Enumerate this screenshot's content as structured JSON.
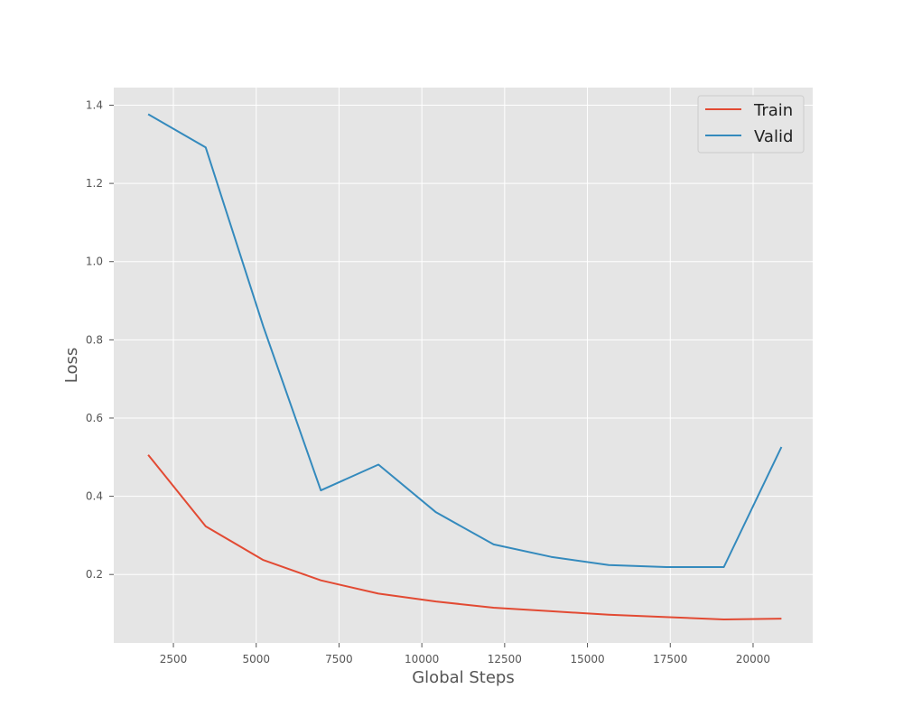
{
  "chart_data": {
    "type": "line",
    "title": "",
    "xlabel": "Global Steps",
    "ylabel": "Loss",
    "xlim": [
      700,
      21800
    ],
    "ylim": [
      0.025,
      1.445
    ],
    "xticks": [
      2500,
      5000,
      7500,
      10000,
      12500,
      15000,
      17500,
      20000
    ],
    "yticks": [
      0.2,
      0.4,
      0.6,
      0.8,
      1.0,
      1.2,
      1.4
    ],
    "xtick_labels": [
      "2500",
      "5000",
      "7500",
      "10000",
      "12500",
      "15000",
      "17500",
      "20000"
    ],
    "ytick_labels": [
      "0.2",
      "0.4",
      "0.6",
      "0.8",
      "1.0",
      "1.2",
      "1.4"
    ],
    "grid": true,
    "legend_position": "top-right",
    "x": [
      1738,
      3476,
      5214,
      6952,
      8690,
      10428,
      12166,
      13904,
      15642,
      17380,
      19118,
      20856
    ],
    "series": [
      {
        "name": "Train",
        "color": "#e24a33",
        "values": [
          0.506,
          0.323,
          0.237,
          0.185,
          0.151,
          0.131,
          0.115,
          0.106,
          0.097,
          0.091,
          0.085,
          0.087
        ]
      },
      {
        "name": "Valid",
        "color": "#348abd",
        "values": [
          1.377,
          1.292,
          0.834,
          0.415,
          0.481,
          0.359,
          0.277,
          0.245,
          0.224,
          0.219,
          0.219,
          0.526
        ]
      }
    ],
    "style": {
      "plot_background": "#e5e5e5",
      "grid_color": "#ffffff",
      "text_color": "#555555",
      "legend_background": "#e5e5e5",
      "legend_border": "#cccccc"
    }
  }
}
